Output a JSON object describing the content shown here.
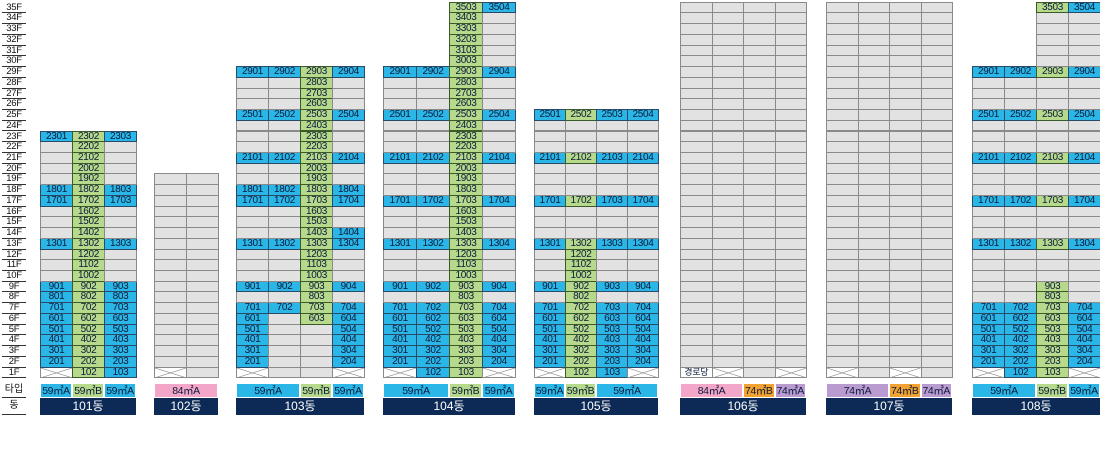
{
  "floors": [
    "35F",
    "34F",
    "33F",
    "32F",
    "31F",
    "30F",
    "29F",
    "28F",
    "27F",
    "26F",
    "25F",
    "24F",
    "23F",
    "22F",
    "21F",
    "20F",
    "19F",
    "18F",
    "17F",
    "16F",
    "15F",
    "14F",
    "13F",
    "12F",
    "11F",
    "10F",
    "9F",
    "8F",
    "7F",
    "6F",
    "5F",
    "4F",
    "3F",
    "2F",
    "1F"
  ],
  "row_labels": {
    "type": "타입",
    "dong": "동"
  },
  "colors": {
    "blue": "#2ab7e8",
    "green": "#b6d98c",
    "gray": "#e2e2e2",
    "pink": "#f4a6c9",
    "orange": "#f2a230",
    "purple": "#b99bd2",
    "navy": "#0c2a55"
  },
  "buildings": [
    {
      "name": "101동",
      "columns": [
        {
          "top": 23,
          "color": "blue",
          "units": [
            "2301",
            "1801",
            "1701",
            "1301",
            "901",
            "801",
            "701",
            "601",
            "501",
            "401",
            "301",
            "201"
          ],
          "ground": "x"
        },
        {
          "top": 23,
          "color": "green",
          "units": [
            "2302",
            "2202",
            "2102",
            "2002",
            "1902",
            "1802",
            "1702",
            "1602",
            "1502",
            "1402",
            "1302",
            "1202",
            "1102",
            "1002",
            "902",
            "802",
            "702",
            "602",
            "502",
            "402",
            "302",
            "202",
            "102"
          ]
        },
        {
          "top": 23,
          "color": "blue",
          "units": [
            "2303",
            "1803",
            "1703",
            "1303",
            "903",
            "803",
            "703",
            "603",
            "503",
            "403",
            "303",
            "203",
            "103"
          ]
        }
      ],
      "types": [
        {
          "label": "59㎡A",
          "color": "blue",
          "span": 1
        },
        {
          "label": "59㎡B",
          "color": "green",
          "span": 1
        },
        {
          "label": "59㎡A",
          "color": "blue",
          "span": 1
        }
      ]
    },
    {
      "name": "102동",
      "columns": [
        {
          "top": 19,
          "color": "blue",
          "units": [],
          "ground": "x"
        },
        {
          "top": 19,
          "color": "blue",
          "units": [],
          "ground": "gray"
        }
      ],
      "types": [
        {
          "label": "84㎡A",
          "color": "pink",
          "span": 2
        }
      ]
    },
    {
      "name": "103동",
      "columns": [
        {
          "top": 29,
          "color": "blue",
          "units": [
            "2901",
            "2501",
            "2101",
            "1801",
            "1701",
            "1301",
            "901",
            "701",
            "601",
            "501",
            "401",
            "301",
            "201"
          ],
          "ground": "x"
        },
        {
          "top": 29,
          "color": "blue",
          "units": [
            "2902",
            "2502",
            "2102",
            "1802",
            "1702",
            "1302",
            "902",
            "702"
          ],
          "ground": "gray"
        },
        {
          "top": 29,
          "color": "green",
          "units": [
            "2903",
            "2803",
            "2703",
            "2603",
            "2503",
            "2403",
            "2303",
            "2203",
            "2103",
            "2003",
            "1903",
            "1803",
            "1703",
            "1603",
            "1503",
            "1403",
            "1303",
            "1203",
            "1103",
            "1003",
            "903",
            "803",
            "703",
            "603"
          ],
          "ground": "gray"
        },
        {
          "top": 29,
          "color": "blue",
          "units": [
            "2904",
            "2504",
            "2104",
            "1804",
            "1704",
            "1404",
            "1304",
            "904",
            "704",
            "604",
            "504",
            "404",
            "304",
            "204"
          ],
          "ground": "x"
        }
      ],
      "types": [
        {
          "label": "59㎡A",
          "color": "blue",
          "span": 2
        },
        {
          "label": "59㎡B",
          "color": "green",
          "span": 1
        },
        {
          "label": "59㎡A",
          "color": "blue",
          "span": 1
        }
      ]
    },
    {
      "name": "104동",
      "columns": [
        {
          "top": 29,
          "color": "blue",
          "units": [
            "2901",
            "2501",
            "2101",
            "1701",
            "1301",
            "901",
            "701",
            "601",
            "501",
            "401",
            "301",
            "201"
          ],
          "ground": "x"
        },
        {
          "top": 29,
          "color": "blue",
          "units": [
            "2902",
            "2502",
            "2102",
            "1702",
            "1302",
            "902",
            "702",
            "602",
            "502",
            "402",
            "302",
            "202",
            "102"
          ]
        },
        {
          "top": 35,
          "color": "green",
          "units": [
            "3503",
            "3403",
            "3303",
            "3203",
            "3103",
            "3003",
            "2903",
            "2803",
            "2703",
            "2603",
            "2503",
            "2403",
            "2303",
            "2203",
            "2103",
            "2003",
            "1903",
            "1803",
            "1703",
            "1603",
            "1503",
            "1403",
            "1303",
            "1203",
            "1103",
            "1003",
            "903",
            "803",
            "703",
            "603",
            "503",
            "403",
            "303",
            "203",
            "103"
          ]
        },
        {
          "top": 35,
          "color": "blue",
          "units": [
            "3504",
            "2904",
            "2504",
            "2104",
            "1704",
            "1304",
            "904",
            "704",
            "604",
            "504",
            "404",
            "304",
            "204"
          ],
          "ground": "x"
        }
      ],
      "types": [
        {
          "label": "59㎡A",
          "color": "blue",
          "span": 2
        },
        {
          "label": "59㎡B",
          "color": "green",
          "span": 1
        },
        {
          "label": "59㎡A",
          "color": "blue",
          "span": 1
        }
      ]
    },
    {
      "name": "105동",
      "columns": [
        {
          "top": 25,
          "color": "blue",
          "units": [
            "2501",
            "2101",
            "1701",
            "1301",
            "901",
            "701",
            "601",
            "501",
            "401",
            "301",
            "201"
          ],
          "ground": "x"
        },
        {
          "top": 25,
          "color": "green",
          "units": [
            "2502",
            "2102",
            "1702",
            "1302",
            "1202",
            "1102",
            "1002",
            "902",
            "802",
            "702",
            "602",
            "502",
            "402",
            "302",
            "202",
            "102"
          ]
        },
        {
          "top": 25,
          "color": "blue",
          "units": [
            "2503",
            "2103",
            "1703",
            "1303",
            "903",
            "703",
            "603",
            "503",
            "403",
            "303",
            "203",
            "103"
          ]
        },
        {
          "top": 25,
          "color": "blue",
          "units": [
            "2504",
            "2104",
            "1704",
            "1304",
            "904",
            "704",
            "604",
            "504",
            "404",
            "304",
            "204"
          ],
          "ground": "x"
        }
      ],
      "types": [
        {
          "label": "59㎡A",
          "color": "blue",
          "span": 1
        },
        {
          "label": "59㎡B",
          "color": "green",
          "span": 1
        },
        {
          "label": "59㎡A",
          "color": "blue",
          "span": 2
        }
      ]
    },
    {
      "name": "106동",
      "columns": [
        {
          "top": 35,
          "color": "blue",
          "units": [],
          "ground": "text",
          "ground_label": "경로당"
        },
        {
          "top": 35,
          "color": "blue",
          "units": [],
          "ground": "x"
        },
        {
          "top": 35,
          "color": "blue",
          "units": [],
          "ground": "gray"
        },
        {
          "top": 35,
          "color": "blue",
          "units": [],
          "ground": "x"
        }
      ],
      "types": [
        {
          "label": "84㎡A",
          "color": "pink",
          "span": 2
        },
        {
          "label": "74㎡B",
          "color": "orange",
          "span": 1
        },
        {
          "label": "74㎡A",
          "color": "purple",
          "span": 1
        }
      ]
    },
    {
      "name": "107동",
      "columns": [
        {
          "top": 35,
          "color": "blue",
          "units": [],
          "ground": "x"
        },
        {
          "top": 35,
          "color": "blue",
          "units": [],
          "ground": "gray"
        },
        {
          "top": 35,
          "color": "blue",
          "units": [],
          "ground": "x"
        },
        {
          "top": 35,
          "color": "blue",
          "units": [],
          "ground": "gray"
        }
      ],
      "types": [
        {
          "label": "74㎡A",
          "color": "purple",
          "span": 2
        },
        {
          "label": "74㎡B",
          "color": "orange",
          "span": 1
        },
        {
          "label": "74㎡A",
          "color": "purple",
          "span": 1
        }
      ]
    },
    {
      "name": "108동",
      "columns": [
        {
          "top": 29,
          "color": "blue",
          "units": [
            "2901",
            "2501",
            "2101",
            "1701",
            "1301",
            "701",
            "601",
            "501",
            "401",
            "301",
            "201"
          ],
          "ground": "x"
        },
        {
          "top": 29,
          "color": "blue",
          "units": [
            "2902",
            "2502",
            "2102",
            "1702",
            "1302",
            "702",
            "602",
            "502",
            "402",
            "302",
            "202",
            "102"
          ]
        },
        {
          "top": 35,
          "color": "green",
          "units": [
            "3503",
            "2903",
            "2503",
            "2103",
            "1703",
            "1303",
            "903",
            "803",
            "703",
            "603",
            "503",
            "403",
            "303",
            "203",
            "103"
          ]
        },
        {
          "top": 35,
          "color": "blue",
          "units": [
            "3504",
            "2904",
            "2504",
            "2104",
            "1704",
            "1304",
            "704",
            "604",
            "504",
            "404",
            "304",
            "204"
          ],
          "ground": "x"
        }
      ],
      "types": [
        {
          "label": "59㎡A",
          "color": "blue",
          "span": 2
        },
        {
          "label": "59㎡B",
          "color": "green",
          "span": 1
        },
        {
          "label": "59㎡A",
          "color": "blue",
          "span": 1
        }
      ]
    }
  ]
}
